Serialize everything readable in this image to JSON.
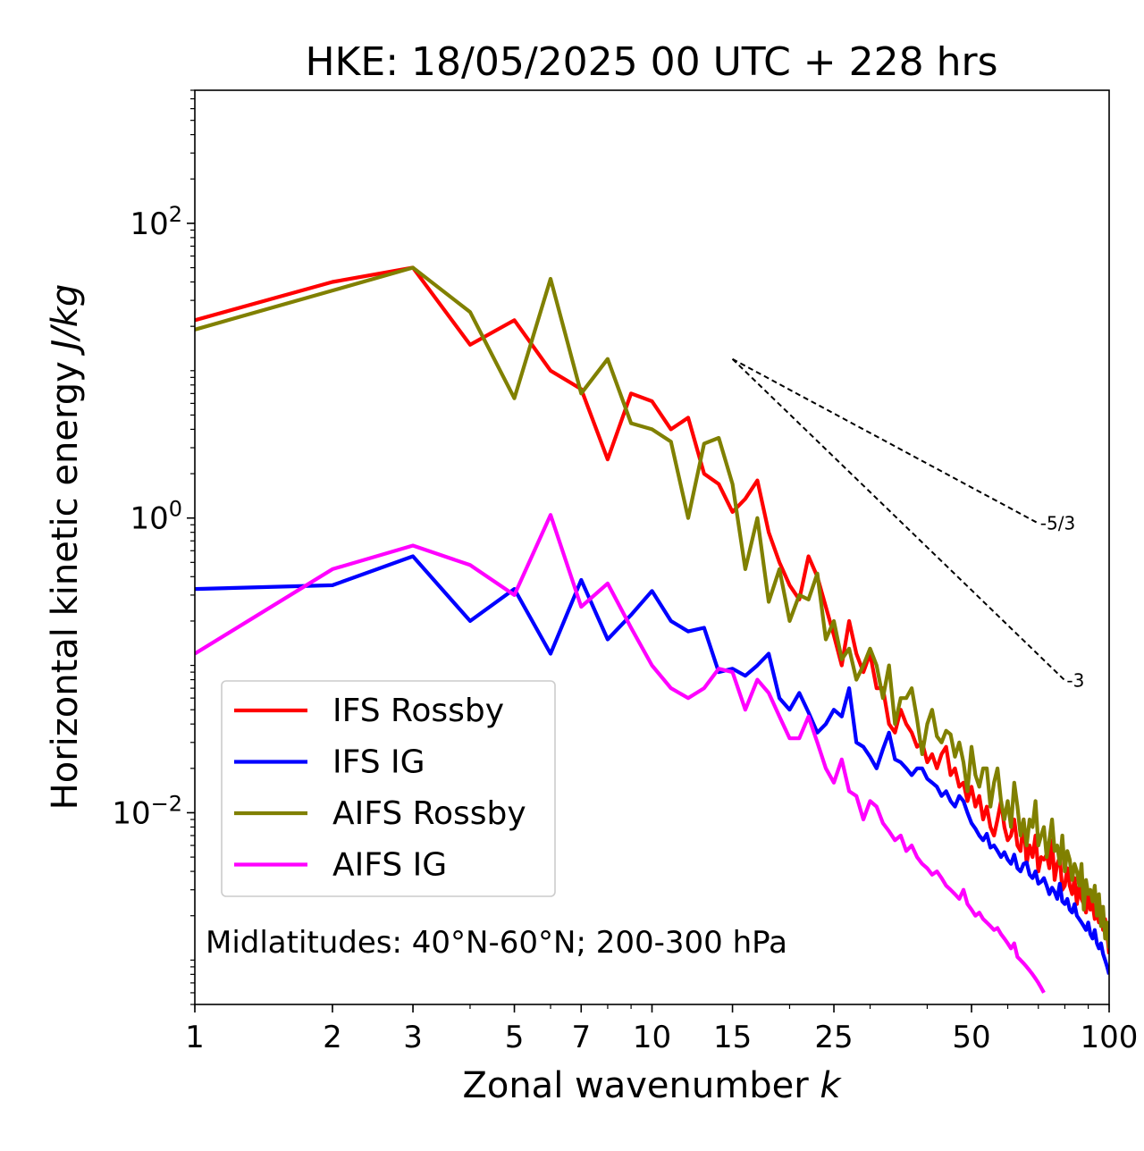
{
  "chart_data": {
    "type": "line",
    "title": "HKE: 18/05/2025 00 UTC + 228 hrs",
    "xlabel": "Zonal wavenumber k",
    "ylabel": "Horizontal kinetic energy J/kg",
    "xscale": "log",
    "yscale": "log",
    "xlim": [
      1,
      100
    ],
    "ylim": [
      0.0005,
      800
    ],
    "x_ticks": [
      1,
      2,
      3,
      5,
      7,
      10,
      15,
      25,
      50,
      100
    ],
    "x_tick_labels": [
      "1",
      "2",
      "3",
      "5",
      "7",
      "10",
      "15",
      "25",
      "50",
      "100"
    ],
    "y_ticks": [
      0.01,
      1,
      100
    ],
    "y_tick_labels": [
      "10",
      "10",
      "10"
    ],
    "y_tick_exponents": [
      "−2",
      "0",
      "2"
    ],
    "annotation": "Midlatitudes: 40°N-60°N; 200-300 hPa",
    "legend_position": "lower-left",
    "grid": false,
    "reference_slopes": [
      {
        "label": "-5/3",
        "slope": -1.6667,
        "k_start": 15,
        "k_end": 70,
        "e_start": 12
      },
      {
        "label": "-3",
        "slope": -3,
        "k_start": 15,
        "k_end": 80,
        "e_start": 12
      }
    ],
    "series": [
      {
        "name": "IFS Rossby",
        "color": "#ff0000",
        "x": [
          1,
          2,
          3,
          4,
          5,
          6,
          7,
          8,
          9,
          10,
          11,
          12,
          13,
          14,
          15,
          16,
          17,
          18,
          19,
          20,
          21,
          22,
          23,
          24,
          25,
          26,
          27,
          28,
          29,
          30,
          31,
          32,
          33,
          34,
          35,
          36,
          37,
          38,
          39,
          40,
          41,
          42,
          43,
          44,
          45,
          46,
          47,
          48,
          49,
          50,
          51,
          52,
          53,
          54,
          55,
          56,
          57,
          58,
          59,
          60,
          61,
          62,
          63,
          64,
          65,
          66,
          67,
          68,
          69,
          70,
          71,
          72,
          73,
          74,
          75,
          76,
          77,
          78,
          79,
          80,
          81,
          82,
          83,
          84,
          85,
          86,
          87,
          88,
          89,
          90,
          91,
          92,
          93,
          94,
          95,
          96,
          97,
          98,
          99,
          100
        ],
        "y": [
          22,
          40,
          50,
          15,
          22,
          10,
          7.5,
          2.5,
          7,
          6.2,
          4,
          4.8,
          2,
          1.7,
          1.1,
          1.35,
          1.8,
          0.8,
          0.5,
          0.35,
          0.28,
          0.55,
          0.4,
          0.25,
          0.16,
          0.1,
          0.2,
          0.12,
          0.09,
          0.12,
          0.07,
          0.07,
          0.04,
          0.035,
          0.05,
          0.04,
          0.035,
          0.028,
          0.03,
          0.022,
          0.025,
          0.02,
          0.025,
          0.028,
          0.018,
          0.02,
          0.015,
          0.016,
          0.012,
          0.015,
          0.011,
          0.013,
          0.009,
          0.011,
          0.008,
          0.007,
          0.009,
          0.012,
          0.008,
          0.0065,
          0.007,
          0.009,
          0.006,
          0.0055,
          0.009,
          0.0045,
          0.006,
          0.005,
          0.007,
          0.004,
          0.005,
          0.0048,
          0.0052,
          0.0042,
          0.0065,
          0.0035,
          0.0045,
          0.005,
          0.003,
          0.0032,
          0.0042,
          0.0032,
          0.0028,
          0.0036,
          0.0024,
          0.0032,
          0.0026,
          0.0024,
          0.0021,
          0.0028,
          0.0022,
          0.0024,
          0.0019,
          0.0021,
          0.0018,
          0.0023,
          0.0016,
          0.0019,
          0.0015,
          0.0011
        ]
      },
      {
        "name": "IFS IG",
        "color": "#0000ff",
        "x": [
          1,
          2,
          3,
          4,
          5,
          6,
          7,
          8,
          9,
          10,
          11,
          12,
          13,
          14,
          15,
          16,
          17,
          18,
          19,
          20,
          21,
          22,
          23,
          24,
          25,
          26,
          27,
          28,
          29,
          30,
          31,
          32,
          33,
          34,
          35,
          36,
          37,
          38,
          39,
          40,
          41,
          42,
          43,
          44,
          45,
          46,
          47,
          48,
          49,
          50,
          51,
          52,
          53,
          54,
          55,
          56,
          57,
          58,
          59,
          60,
          61,
          62,
          63,
          64,
          65,
          66,
          67,
          68,
          69,
          70,
          71,
          72,
          73,
          74,
          75,
          76,
          77,
          78,
          79,
          80,
          81,
          82,
          83,
          84,
          85,
          86,
          87,
          88,
          89,
          90,
          91,
          92,
          93,
          94,
          95,
          96,
          97,
          98,
          99,
          100
        ],
        "y": [
          0.33,
          0.35,
          0.55,
          0.2,
          0.33,
          0.12,
          0.38,
          0.15,
          0.22,
          0.32,
          0.2,
          0.17,
          0.18,
          0.09,
          0.095,
          0.085,
          0.1,
          0.12,
          0.06,
          0.05,
          0.065,
          0.048,
          0.035,
          0.04,
          0.05,
          0.045,
          0.07,
          0.03,
          0.028,
          0.024,
          0.02,
          0.027,
          0.035,
          0.023,
          0.022,
          0.02,
          0.018,
          0.02,
          0.02,
          0.017,
          0.016,
          0.015,
          0.013,
          0.014,
          0.012,
          0.011,
          0.013,
          0.012,
          0.01,
          0.0085,
          0.0078,
          0.007,
          0.0065,
          0.0072,
          0.0058,
          0.006,
          0.0055,
          0.005,
          0.0054,
          0.0048,
          0.0045,
          0.0052,
          0.0042,
          0.004,
          0.0045,
          0.0046,
          0.0038,
          0.0036,
          0.004,
          0.0033,
          0.0034,
          0.0036,
          0.0032,
          0.0028,
          0.0031,
          0.0029,
          0.0026,
          0.0033,
          0.0025,
          0.0024,
          0.0026,
          0.0022,
          0.0021,
          0.0024,
          0.002,
          0.0019,
          0.0018,
          0.0017,
          0.0016,
          0.0018,
          0.0015,
          0.0014,
          0.0016,
          0.0013,
          0.0012,
          0.0013,
          0.0011,
          0.001,
          0.0009,
          0.0008
        ]
      },
      {
        "name": "AIFS Rossby",
        "color": "#808000",
        "x": [
          1,
          2,
          3,
          4,
          5,
          6,
          7,
          8,
          9,
          10,
          11,
          12,
          13,
          14,
          15,
          16,
          17,
          18,
          19,
          20,
          21,
          22,
          23,
          24,
          25,
          26,
          27,
          28,
          29,
          30,
          31,
          32,
          33,
          34,
          35,
          36,
          37,
          38,
          39,
          40,
          41,
          42,
          43,
          44,
          45,
          46,
          47,
          48,
          49,
          50,
          51,
          52,
          53,
          54,
          55,
          56,
          57,
          58,
          59,
          60,
          61,
          62,
          63,
          64,
          65,
          66,
          67,
          68,
          69,
          70,
          71,
          72,
          73,
          74,
          75,
          76,
          77,
          78,
          79,
          80,
          81,
          82,
          83,
          84,
          85,
          86,
          87,
          88,
          89,
          90,
          91,
          92,
          93,
          94,
          95,
          96,
          97,
          98,
          99,
          100
        ],
        "y": [
          19,
          35,
          50,
          25,
          6.5,
          42,
          7,
          12,
          4.4,
          4,
          3.3,
          1,
          3.2,
          3.5,
          1.7,
          0.45,
          1,
          0.27,
          0.45,
          0.2,
          0.3,
          0.28,
          0.42,
          0.15,
          0.2,
          0.11,
          0.13,
          0.08,
          0.1,
          0.13,
          0.1,
          0.06,
          0.1,
          0.04,
          0.06,
          0.06,
          0.07,
          0.043,
          0.025,
          0.04,
          0.05,
          0.033,
          0.03,
          0.036,
          0.034,
          0.024,
          0.03,
          0.022,
          0.014,
          0.028,
          0.018,
          0.015,
          0.02,
          0.02,
          0.011,
          0.016,
          0.02,
          0.012,
          0.009,
          0.012,
          0.008,
          0.016,
          0.011,
          0.007,
          0.009,
          0.006,
          0.009,
          0.008,
          0.012,
          0.006,
          0.007,
          0.008,
          0.005,
          0.0065,
          0.009,
          0.0055,
          0.006,
          0.0045,
          0.007,
          0.004,
          0.0055,
          0.0048,
          0.0035,
          0.0045,
          0.004,
          0.0032,
          0.0045,
          0.0022,
          0.0035,
          0.0028,
          0.003,
          0.0025,
          0.0032,
          0.002,
          0.0028,
          0.0017,
          0.0023,
          0.0014,
          0.0018,
          0.0012
        ]
      },
      {
        "name": "AIFS IG",
        "color": "#ff00ff",
        "x": [
          1,
          2,
          3,
          4,
          5,
          6,
          7,
          8,
          9,
          10,
          11,
          12,
          13,
          14,
          15,
          16,
          17,
          18,
          19,
          20,
          21,
          22,
          23,
          24,
          25,
          26,
          27,
          28,
          29,
          30,
          31,
          32,
          33,
          34,
          35,
          36,
          37,
          38,
          39,
          40,
          41,
          42,
          43,
          44,
          45,
          46,
          47,
          48,
          49,
          50,
          51,
          52,
          53,
          54,
          55,
          56,
          57,
          58,
          59,
          60,
          61,
          62,
          63,
          64,
          65,
          66,
          67,
          68,
          69,
          70,
          71,
          72
        ],
        "y": [
          0.12,
          0.45,
          0.65,
          0.48,
          0.3,
          1.05,
          0.25,
          0.36,
          0.18,
          0.1,
          0.07,
          0.06,
          0.07,
          0.095,
          0.09,
          0.05,
          0.08,
          0.065,
          0.045,
          0.032,
          0.032,
          0.045,
          0.03,
          0.02,
          0.016,
          0.023,
          0.014,
          0.013,
          0.009,
          0.012,
          0.011,
          0.0085,
          0.0075,
          0.0065,
          0.007,
          0.0055,
          0.006,
          0.005,
          0.0045,
          0.0042,
          0.0038,
          0.004,
          0.0036,
          0.0032,
          0.003,
          0.0028,
          0.0026,
          0.003,
          0.0024,
          0.0022,
          0.002,
          0.0021,
          0.0019,
          0.0018,
          0.0017,
          0.0016,
          0.00165,
          0.0015,
          0.0014,
          0.0013,
          0.0012,
          0.0013,
          0.00105,
          0.001,
          0.00095,
          0.0009,
          0.00085,
          0.0008,
          0.00075,
          0.0007,
          0.00065,
          0.0006
        ]
      }
    ]
  }
}
